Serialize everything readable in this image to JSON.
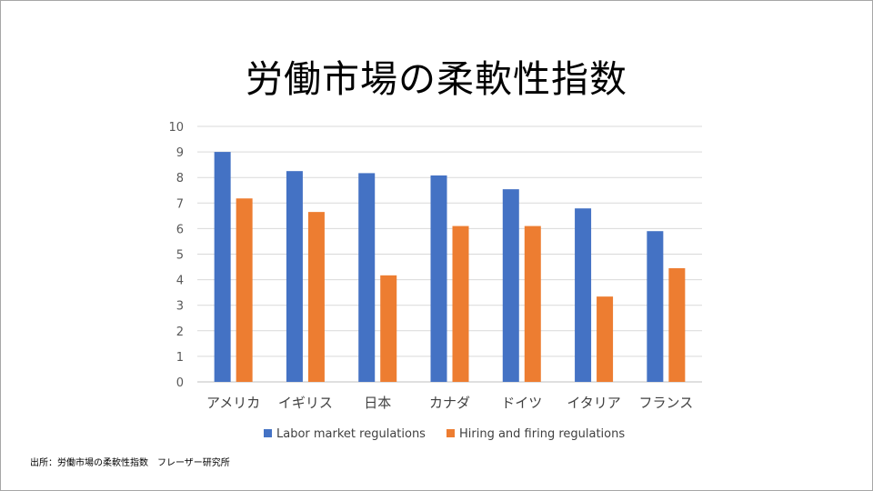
{
  "title": "労働市場の柔軟性指数",
  "source_note": "出所：労働市場の柔軟性指数　フレーザー研究所",
  "chart_data": {
    "type": "bar",
    "title": "労働市場の柔軟性指数",
    "xlabel": "",
    "ylabel": "",
    "categories": [
      "アメリカ",
      "イギリス",
      "日本",
      "カナダ",
      "ドイツ",
      "イタリア",
      "フランス"
    ],
    "yticks": [
      0,
      1,
      2,
      3,
      4,
      5,
      6,
      7,
      8,
      9,
      10
    ],
    "ylim": [
      0,
      10
    ],
    "grid": true,
    "legend_position": "bottom",
    "series": [
      {
        "name": "Labor market regulations",
        "color": "#4472c4",
        "values": [
          9.0,
          8.25,
          8.17,
          8.08,
          7.54,
          6.79,
          5.9
        ]
      },
      {
        "name": "Hiring and firing regulations",
        "color": "#ed7d31",
        "values": [
          7.18,
          6.65,
          4.17,
          6.1,
          6.1,
          3.34,
          4.45
        ]
      }
    ]
  }
}
